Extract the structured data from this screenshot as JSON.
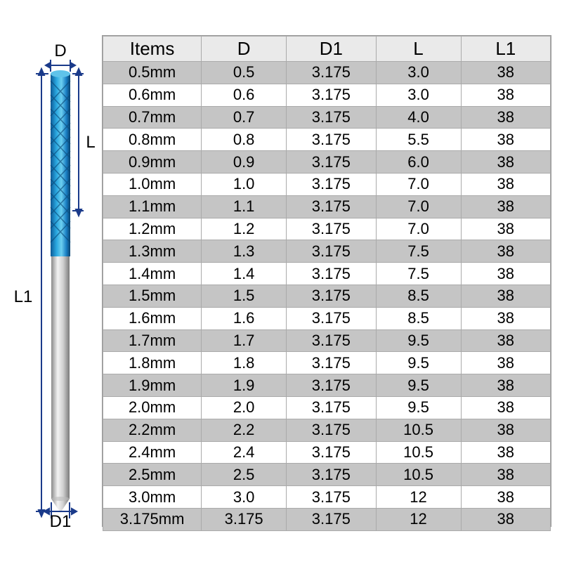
{
  "diagram": {
    "labels": {
      "D": "D",
      "D1": "D1",
      "L": "L",
      "L1": "L1"
    },
    "colors": {
      "flute_top": "#2aa8e0",
      "flute_bottom": "#0d6fb8",
      "shank": "#c8c8c8",
      "shank_highlight": "#f2f2f2",
      "dim_line": "#1a3a8a",
      "dim_text": "#000000"
    }
  },
  "table": {
    "columns": [
      "Items",
      "D",
      "D1",
      "L",
      "L1"
    ],
    "rows": [
      [
        "0.5mm",
        "0.5",
        "3.175",
        "3.0",
        "38"
      ],
      [
        "0.6mm",
        "0.6",
        "3.175",
        "3.0",
        "38"
      ],
      [
        "0.7mm",
        "0.7",
        "3.175",
        "4.0",
        "38"
      ],
      [
        "0.8mm",
        "0.8",
        "3.175",
        "5.5",
        "38"
      ],
      [
        "0.9mm",
        "0.9",
        "3.175",
        "6.0",
        "38"
      ],
      [
        "1.0mm",
        "1.0",
        "3.175",
        "7.0",
        "38"
      ],
      [
        "1.1mm",
        "1.1",
        "3.175",
        "7.0",
        "38"
      ],
      [
        "1.2mm",
        "1.2",
        "3.175",
        "7.0",
        "38"
      ],
      [
        "1.3mm",
        "1.3",
        "3.175",
        "7.5",
        "38"
      ],
      [
        "1.4mm",
        "1.4",
        "3.175",
        "7.5",
        "38"
      ],
      [
        "1.5mm",
        "1.5",
        "3.175",
        "8.5",
        "38"
      ],
      [
        "1.6mm",
        "1.6",
        "3.175",
        "8.5",
        "38"
      ],
      [
        "1.7mm",
        "1.7",
        "3.175",
        "9.5",
        "38"
      ],
      [
        "1.8mm",
        "1.8",
        "3.175",
        "9.5",
        "38"
      ],
      [
        "1.9mm",
        "1.9",
        "3.175",
        "9.5",
        "38"
      ],
      [
        "2.0mm",
        "2.0",
        "3.175",
        "9.5",
        "38"
      ],
      [
        "2.2mm",
        "2.2",
        "3.175",
        "10.5",
        "38"
      ],
      [
        "2.4mm",
        "2.4",
        "3.175",
        "10.5",
        "38"
      ],
      [
        "2.5mm",
        "2.5",
        "3.175",
        "10.5",
        "38"
      ],
      [
        "3.0mm",
        "3.0",
        "3.175",
        "12",
        "38"
      ],
      [
        "3.175mm",
        "3.175",
        "3.175",
        "12",
        "38"
      ]
    ],
    "styles": {
      "header_bg": "#eaeaea",
      "odd_row_bg": "#c5c5c5",
      "even_row_bg": "#ffffff",
      "border_color": "#aaaaaa",
      "header_fontsize": 26,
      "cell_fontsize": 22,
      "text_color": "#000000",
      "column_widths_pct": [
        22,
        19,
        20,
        19,
        20
      ]
    }
  }
}
